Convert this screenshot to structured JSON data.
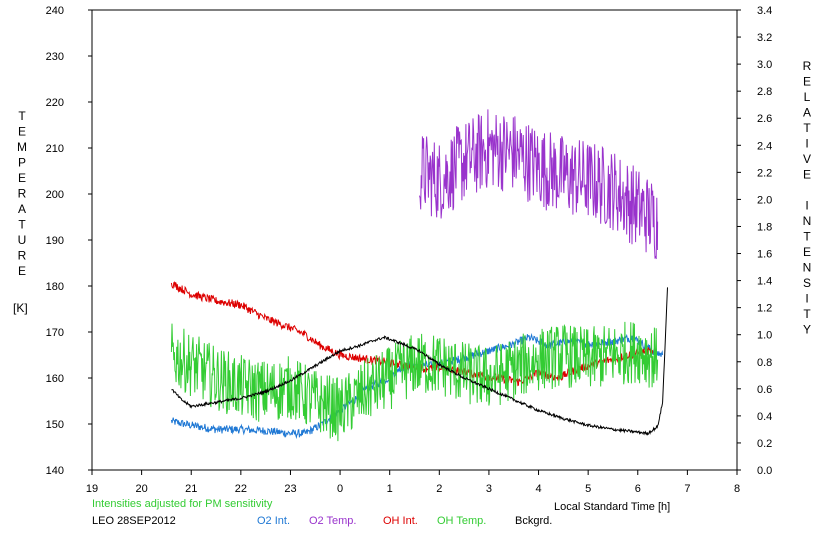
{
  "chart_data": {
    "type": "line",
    "left_axis": {
      "label": "TEMPERATURE",
      "unit": "[K]",
      "range": [
        140,
        240
      ],
      "ticks": [
        140,
        150,
        160,
        170,
        180,
        190,
        200,
        210,
        220,
        230,
        240
      ]
    },
    "right_axis": {
      "label": "RELATIVE INTENSITY",
      "range": [
        0.0,
        3.4
      ],
      "ticks": [
        "0.0",
        "0.2",
        "0.4",
        "0.6",
        "0.8",
        "1.0",
        "1.2",
        "1.4",
        "1.6",
        "1.8",
        "2.0",
        "2.2",
        "2.4",
        "2.6",
        "2.8",
        "3.0",
        "3.2",
        "3.4"
      ]
    },
    "x_axis": {
      "label": "Local Standard Time [h]",
      "tick_labels": [
        "19",
        "20",
        "21",
        "22",
        "23",
        "0",
        "1",
        "2",
        "3",
        "4",
        "5",
        "6",
        "7",
        "8"
      ]
    },
    "note": "Intensities adjusted for PM sensitivity",
    "station": "LEO 28SEP2012",
    "series": [
      {
        "name": "O2 Int.",
        "color": "#1f78d4",
        "axis": "right",
        "noise": 0.03,
        "points": [
          [
            20.6,
            0.36
          ],
          [
            21.0,
            0.33
          ],
          [
            21.5,
            0.3
          ],
          [
            22.0,
            0.3
          ],
          [
            22.5,
            0.29
          ],
          [
            23.0,
            0.27
          ],
          [
            23.3,
            0.27
          ],
          [
            23.6,
            0.33
          ],
          [
            24.0,
            0.44
          ],
          [
            24.3,
            0.52
          ],
          [
            24.5,
            0.6
          ],
          [
            24.9,
            0.66
          ],
          [
            25.2,
            0.75
          ],
          [
            25.5,
            0.78
          ],
          [
            25.8,
            0.77
          ],
          [
            26.2,
            0.8
          ],
          [
            26.6,
            0.84
          ],
          [
            27.0,
            0.88
          ],
          [
            27.5,
            0.93
          ],
          [
            27.8,
            0.98
          ],
          [
            28.2,
            0.92
          ],
          [
            28.6,
            0.95
          ],
          [
            29.0,
            0.93
          ],
          [
            29.5,
            0.95
          ],
          [
            29.9,
            0.98
          ],
          [
            30.3,
            0.88
          ],
          [
            30.5,
            0.85
          ]
        ]
      },
      {
        "name": "O2 Temp.",
        "color": "#9933cc",
        "axis": "left",
        "noise": 9,
        "points": [
          [
            25.6,
            205
          ],
          [
            26.0,
            203
          ],
          [
            26.5,
            207
          ],
          [
            27.0,
            210
          ],
          [
            27.5,
            209
          ],
          [
            28.0,
            206
          ],
          [
            28.5,
            204
          ],
          [
            29.0,
            203
          ],
          [
            29.5,
            201
          ],
          [
            30.0,
            197
          ],
          [
            30.4,
            194
          ]
        ]
      },
      {
        "name": "OH Int.",
        "color": "#dd0000",
        "axis": "right",
        "noise": 0.03,
        "points": [
          [
            20.6,
            1.38
          ],
          [
            21.0,
            1.3
          ],
          [
            21.5,
            1.25
          ],
          [
            22.0,
            1.22
          ],
          [
            22.5,
            1.12
          ],
          [
            23.0,
            1.05
          ],
          [
            23.3,
            1.0
          ],
          [
            23.6,
            0.92
          ],
          [
            24.0,
            0.85
          ],
          [
            24.5,
            0.82
          ],
          [
            24.9,
            0.8
          ],
          [
            25.3,
            0.77
          ],
          [
            25.7,
            0.75
          ],
          [
            26.2,
            0.75
          ],
          [
            26.8,
            0.7
          ],
          [
            27.2,
            0.68
          ],
          [
            27.6,
            0.65
          ],
          [
            28.0,
            0.72
          ],
          [
            28.4,
            0.68
          ],
          [
            28.8,
            0.75
          ],
          [
            29.3,
            0.8
          ],
          [
            29.8,
            0.85
          ],
          [
            30.2,
            0.88
          ],
          [
            30.3,
            0.86
          ]
        ]
      },
      {
        "name": "OH Temp.",
        "color": "#33cc33",
        "axis": "left",
        "noise": 7,
        "points": [
          [
            20.6,
            165
          ],
          [
            21.0,
            163
          ],
          [
            21.5,
            160
          ],
          [
            22.0,
            158
          ],
          [
            22.5,
            157
          ],
          [
            23.0,
            158
          ],
          [
            23.5,
            155
          ],
          [
            24.0,
            153
          ],
          [
            24.5,
            157
          ],
          [
            25.0,
            160
          ],
          [
            25.5,
            163
          ],
          [
            26.0,
            163
          ],
          [
            26.5,
            161
          ],
          [
            27.0,
            160
          ],
          [
            27.5,
            162
          ],
          [
            28.0,
            164
          ],
          [
            28.5,
            165
          ],
          [
            29.0,
            164
          ],
          [
            29.5,
            165
          ],
          [
            30.0,
            166
          ],
          [
            30.4,
            164
          ]
        ]
      },
      {
        "name": "Bckgrd.",
        "color": "#000000",
        "axis": "right",
        "noise": 0.01,
        "points": [
          [
            20.6,
            0.6
          ],
          [
            20.8,
            0.52
          ],
          [
            21.0,
            0.47
          ],
          [
            21.5,
            0.5
          ],
          [
            22.0,
            0.53
          ],
          [
            22.5,
            0.58
          ],
          [
            23.0,
            0.66
          ],
          [
            23.5,
            0.77
          ],
          [
            24.0,
            0.88
          ],
          [
            24.4,
            0.92
          ],
          [
            24.7,
            0.96
          ],
          [
            24.9,
            0.98
          ],
          [
            25.2,
            0.94
          ],
          [
            25.6,
            0.88
          ],
          [
            26.0,
            0.78
          ],
          [
            26.5,
            0.68
          ],
          [
            27.0,
            0.6
          ],
          [
            27.5,
            0.52
          ],
          [
            28.0,
            0.44
          ],
          [
            28.5,
            0.38
          ],
          [
            29.0,
            0.33
          ],
          [
            29.5,
            0.3
          ],
          [
            30.0,
            0.28
          ],
          [
            30.2,
            0.27
          ],
          [
            30.4,
            0.32
          ],
          [
            30.5,
            0.5
          ],
          [
            30.6,
            1.35
          ]
        ]
      }
    ]
  }
}
